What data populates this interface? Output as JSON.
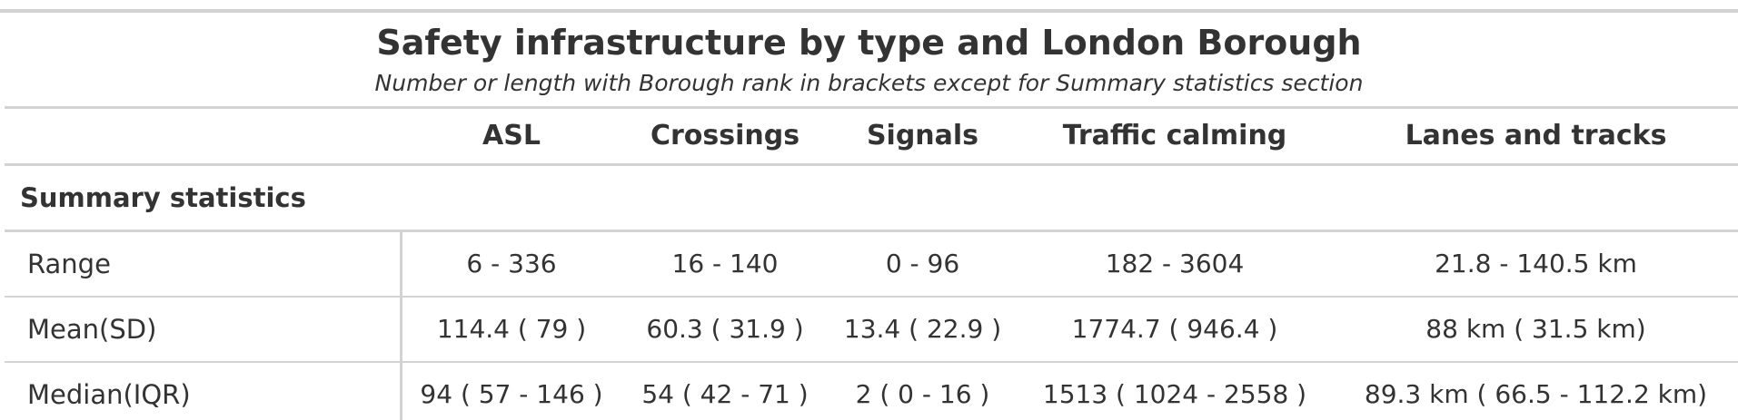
{
  "table": {
    "title": "Safety infrastructure by type and London Borough",
    "subtitle": "Number or length with Borough rank in brackets except for Summary statistics section",
    "columns": [
      "ASL",
      "Crossings",
      "Signals",
      "Traffic calming",
      "Lanes and tracks"
    ],
    "group_label": "Summary statistics",
    "rows": [
      {
        "label": "Range",
        "values": [
          "6 - 336",
          "16 - 140",
          "0 - 96",
          "182 - 3604",
          "21.8 - 140.5 km"
        ]
      },
      {
        "label": "Mean(SD)",
        "values": [
          "114.4 ( 79 )",
          "60.3 ( 31.9 )",
          "13.4 ( 22.9 )",
          "1774.7 ( 946.4 )",
          "88 km ( 31.5 km)"
        ]
      },
      {
        "label": "Median(IQR)",
        "values": [
          "94 ( 57 - 146 )",
          "54 ( 42 - 71 )",
          "2 ( 0 - 16 )",
          "1513 ( 1024 - 2558 )",
          "89.3 km ( 66.5 - 112.2 km)"
        ]
      }
    ]
  },
  "colors": {
    "text": "#333333",
    "rule": "#d3d3d3",
    "background": "#ffffff"
  }
}
